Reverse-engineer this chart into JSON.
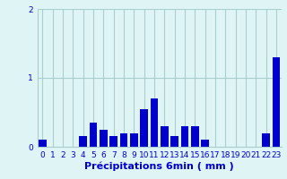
{
  "categories": [
    0,
    1,
    2,
    3,
    4,
    5,
    6,
    7,
    8,
    9,
    10,
    11,
    12,
    13,
    14,
    15,
    16,
    17,
    18,
    19,
    20,
    21,
    22,
    23
  ],
  "values": [
    0.1,
    0.0,
    0.0,
    0.0,
    0.15,
    0.35,
    0.25,
    0.15,
    0.2,
    0.2,
    0.55,
    0.7,
    0.3,
    0.15,
    0.3,
    0.3,
    0.1,
    0.0,
    0.0,
    0.0,
    0.0,
    0.0,
    0.2,
    1.3
  ],
  "bar_color": "#0000cc",
  "background_color": "#dff4f4",
  "grid_color": "#aacfcf",
  "xlabel": "Précipitations 6min ( mm )",
  "ylim": [
    0,
    2.0
  ],
  "yticks": [
    0,
    1,
    2
  ],
  "xlim": [
    -0.5,
    23.5
  ],
  "xlabel_fontsize": 8,
  "tick_fontsize": 6.5,
  "bar_width": 0.75
}
